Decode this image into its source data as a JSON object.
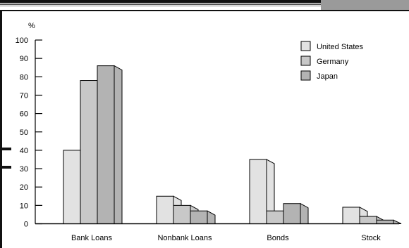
{
  "chart_data": {
    "type": "bar",
    "title": "",
    "xlabel": "",
    "ylabel": "%",
    "ylim": [
      0,
      100
    ],
    "yticks": [
      0,
      10,
      20,
      30,
      40,
      50,
      60,
      70,
      80,
      90,
      100
    ],
    "grid": false,
    "legend_position": "top-right",
    "categories": [
      "Bank Loans",
      "Nonbank Loans",
      "Bonds",
      "Stock"
    ],
    "series": [
      {
        "name": "United States",
        "values": [
          40,
          15,
          35,
          9
        ],
        "color": "#e2e2e2"
      },
      {
        "name": "Germany",
        "values": [
          78,
          10,
          7,
          4
        ],
        "color": "#c8c8c8"
      },
      {
        "name": "Japan",
        "values": [
          86,
          7,
          11,
          2
        ],
        "color": "#b3b3b3"
      }
    ]
  }
}
